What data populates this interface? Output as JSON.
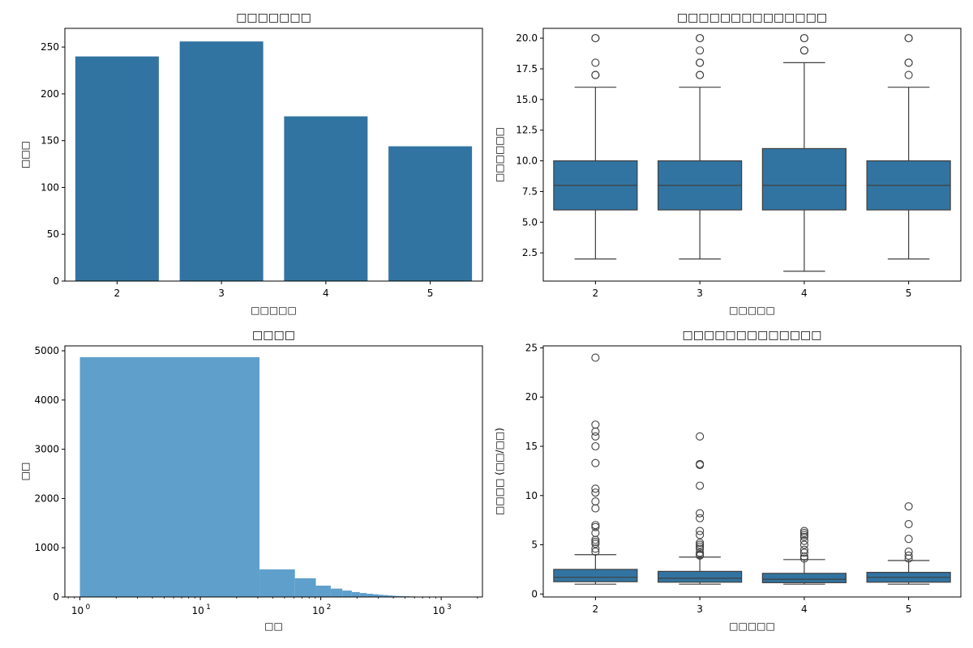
{
  "colors": {
    "bar": "#3274a1",
    "hist": "#5f9fcb",
    "axis": "#000000",
    "whisker": "#3f3f3f"
  },
  "chart_data": [
    {
      "type": "bar",
      "title": "□□□□□□□",
      "xlabel": "□□□□□",
      "ylabel": "□□□",
      "categories": [
        "2",
        "3",
        "4",
        "5"
      ],
      "values": [
        240,
        256,
        176,
        144
      ],
      "ylim": [
        0,
        270
      ],
      "yticks": [
        0,
        50,
        100,
        150,
        200,
        250
      ]
    },
    {
      "type": "box",
      "title": "□□□□□□□□□□□□□□",
      "xlabel": "□□□□□",
      "ylabel": "□□□□□□",
      "categories": [
        "2",
        "3",
        "4",
        "5"
      ],
      "ylim": [
        0.2,
        20.8
      ],
      "yticks": [
        "2.5",
        "5.0",
        "7.5",
        "10.0",
        "12.5",
        "15.0",
        "17.5",
        "20.0"
      ],
      "boxes": [
        {
          "low": 2,
          "q1": 6,
          "median": 8,
          "q3": 10,
          "high": 16,
          "outliers": [
            17,
            17,
            18,
            20,
            20
          ]
        },
        {
          "low": 2,
          "q1": 6,
          "median": 8,
          "q3": 10,
          "high": 16,
          "outliers": [
            17,
            17,
            18,
            18,
            19,
            20,
            20
          ]
        },
        {
          "low": 1,
          "q1": 6,
          "median": 8,
          "q3": 11,
          "high": 18,
          "outliers": [
            19,
            19,
            20,
            20
          ]
        },
        {
          "low": 2,
          "q1": 6,
          "median": 8,
          "q3": 10,
          "high": 16,
          "outliers": [
            17,
            18,
            18,
            20,
            20
          ]
        }
      ]
    },
    {
      "type": "histogram",
      "title": "□□□□",
      "xlabel": "□□",
      "ylabel": "□□",
      "xscale": "log",
      "xlim": [
        0.75,
        2200
      ],
      "ylim": [
        0,
        5100
      ],
      "yticks": [
        0,
        1000,
        2000,
        3000,
        4000,
        5000
      ],
      "xticks": [
        {
          "base": "10",
          "exp": "0",
          "value": 1
        },
        {
          "base": "10",
          "exp": "1",
          "value": 10
        },
        {
          "base": "10",
          "exp": "2",
          "value": 100
        },
        {
          "base": "10",
          "exp": "3",
          "value": 1000
        }
      ],
      "bins": [
        {
          "x0": 1,
          "x1": 31,
          "count": 4870
        },
        {
          "x0": 31,
          "x1": 61,
          "count": 560
        },
        {
          "x0": 61,
          "x1": 91,
          "count": 380
        },
        {
          "x0": 91,
          "x1": 121,
          "count": 230
        },
        {
          "x0": 121,
          "x1": 151,
          "count": 170
        },
        {
          "x0": 151,
          "x1": 181,
          "count": 130
        },
        {
          "x0": 181,
          "x1": 211,
          "count": 100
        },
        {
          "x0": 211,
          "x1": 241,
          "count": 80
        },
        {
          "x0": 241,
          "x1": 271,
          "count": 65
        },
        {
          "x0": 271,
          "x1": 301,
          "count": 55
        },
        {
          "x0": 301,
          "x1": 331,
          "count": 45
        },
        {
          "x0": 331,
          "x1": 361,
          "count": 38
        },
        {
          "x0": 361,
          "x1": 391,
          "count": 30
        },
        {
          "x0": 391,
          "x1": 421,
          "count": 25
        },
        {
          "x0": 421,
          "x1": 451,
          "count": 20
        },
        {
          "x0": 451,
          "x1": 481,
          "count": 17
        },
        {
          "x0": 481,
          "x1": 541,
          "count": 14
        },
        {
          "x0": 541,
          "x1": 601,
          "count": 11
        },
        {
          "x0": 601,
          "x1": 691,
          "count": 8
        },
        {
          "x0": 691,
          "x1": 811,
          "count": 6
        },
        {
          "x0": 811,
          "x1": 1021,
          "count": 4
        },
        {
          "x0": 1021,
          "x1": 1321,
          "count": 3
        },
        {
          "x0": 1321,
          "x1": 1741,
          "count": 2
        }
      ]
    },
    {
      "type": "box",
      "title": "□□□□□□□□□□□□□",
      "xlabel": "□□□□□",
      "ylabel": "□□□□ (□□/□□)",
      "categories": [
        "2",
        "3",
        "4",
        "5"
      ],
      "ylim": [
        -0.3,
        25.2
      ],
      "yticks": [
        "0",
        "5",
        "10",
        "15",
        "20",
        "25"
      ],
      "boxes": [
        {
          "low": 1.0,
          "q1": 1.25,
          "median": 1.7,
          "q3": 2.5,
          "high": 4.0,
          "outliers": [
            4.3,
            4.6,
            5.1,
            5.3,
            5.5,
            6.2,
            6.8,
            7.0,
            8.7,
            9.4,
            10.3,
            10.7,
            13.3,
            15.0,
            16.0,
            16.5,
            17.2,
            24.0
          ]
        },
        {
          "low": 1.0,
          "q1": 1.2,
          "median": 1.6,
          "q3": 2.3,
          "high": 3.75,
          "outliers": [
            3.9,
            4.0,
            4.2,
            4.6,
            4.8,
            5.0,
            5.2,
            6.0,
            6.4,
            7.7,
            8.2,
            11.0,
            13.1,
            13.2,
            16.0
          ]
        },
        {
          "low": 1.0,
          "q1": 1.15,
          "median": 1.5,
          "q3": 2.1,
          "high": 3.5,
          "outliers": [
            3.6,
            3.8,
            4.2,
            4.5,
            5.0,
            5.4,
            5.8,
            6.0,
            6.2,
            6.4
          ]
        },
        {
          "low": 1.0,
          "q1": 1.2,
          "median": 1.7,
          "q3": 2.2,
          "high": 3.4,
          "outliers": [
            3.6,
            3.9,
            4.3,
            5.6,
            7.1,
            8.9
          ]
        }
      ]
    }
  ]
}
